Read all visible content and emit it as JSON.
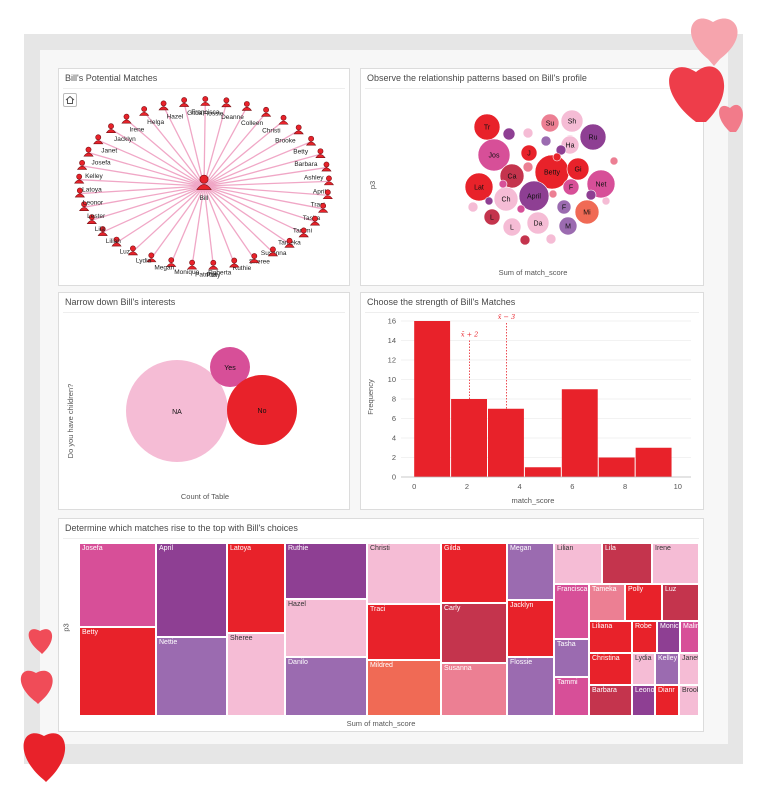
{
  "colors": {
    "red": "#e8222a",
    "pink": "#f5bcd5",
    "magenta": "#d74f98",
    "purple": "#8e3f93",
    "lavender": "#9b6bb0",
    "coral": "#f06a55",
    "rose": "#ec7f93",
    "crimson": "#c4344d",
    "link": "#f0a7c6"
  },
  "panel1": {
    "title": "Bill's Potential Matches",
    "center": "Bill",
    "names": [
      "Deanne",
      "Colleen",
      "Christi",
      "Brooke",
      "Betty",
      "Barbara",
      "Ashley",
      "April",
      "Traci",
      "Tasha",
      "Tammi",
      "Tameka",
      "Susanna",
      "Sheree",
      "Ruthie",
      "Roberta",
      "Polly",
      "Patricia",
      "Monique",
      "Megan",
      "Lydia",
      "Luz",
      "Lilian",
      "Lila",
      "Lester",
      "Leonor",
      "Latoya",
      "Kelley",
      "Josefa",
      "Janet",
      "Jacklyn",
      "Irene",
      "Helga",
      "Hazel",
      "Gilda",
      "Francisca",
      "Flossie"
    ]
  },
  "panel2": {
    "title": "Observe the relationship patterns based on Bill's profile",
    "ylabel": "p3",
    "xlabel": "Sum of match_score",
    "bubbles": [
      "Tr",
      "Su",
      "Sh",
      "Ru",
      "Jos",
      "I",
      "Ha",
      "J",
      "Ca",
      "Betty",
      "Gi",
      "Lat",
      "Net",
      "F",
      "April",
      "Ch",
      "F",
      "Mi",
      "L",
      "Da",
      "L",
      "M"
    ]
  },
  "panel3": {
    "title": "Narrow down Bill's interests",
    "ylabel": "Do you have children?",
    "xlabel": "Count of Table",
    "na": "NA",
    "yes": "Yes",
    "no": "No"
  },
  "panel4": {
    "title": "Choose the strength of Bill's Matches",
    "ylabel": "Frequency",
    "xlabel": "match_score",
    "ann1": "x̄ + 2",
    "ann2": "x̄ − 3"
  },
  "chart_data": {
    "type": "bar",
    "title": "Choose the strength of Bill's Matches",
    "xlabel": "match_score",
    "ylabel": "Frequency",
    "bins": [
      [
        0,
        1.4
      ],
      [
        1.4,
        2.8
      ],
      [
        2.8,
        4.2
      ],
      [
        4.2,
        5.6
      ],
      [
        5.6,
        7
      ],
      [
        7,
        8.4
      ],
      [
        8.4,
        9.8
      ]
    ],
    "values": [
      16,
      8,
      7,
      1,
      9,
      2,
      3
    ],
    "xlim": [
      -0.5,
      10.5
    ],
    "ylim": [
      0,
      16
    ],
    "xticks": [
      "0",
      "2",
      "4",
      "6",
      "8",
      "10"
    ],
    "yticks": [
      "0",
      "2",
      "4",
      "6",
      "8",
      "10",
      "12",
      "14",
      "16"
    ]
  },
  "panel5": {
    "title": "Determine which matches rise to the top with Bill's choices",
    "ylabel": "p3",
    "xlabel": "Sum of match_score",
    "cells": [
      "Josefa",
      "Betty",
      "April",
      "Nettie",
      "Latoya",
      "Sheree",
      "Ruthie",
      "Hazel",
      "Danilo",
      "Christi",
      "Traci",
      "Mildred",
      "Gilda",
      "Carly",
      "Susanna",
      "Megan",
      "Jacklyn",
      "Flossie",
      "Lilian",
      "Lila",
      "Irene",
      "Francisca",
      "Tameka",
      "Polly",
      "Luz",
      "Tasha",
      "Liliana",
      "Robe",
      "Monic",
      "Malin",
      "Tammi",
      "Christina",
      "Lydia",
      "Kelley",
      "Janet",
      "Barbara",
      "Leono",
      "Dianr",
      "Brook"
    ]
  }
}
